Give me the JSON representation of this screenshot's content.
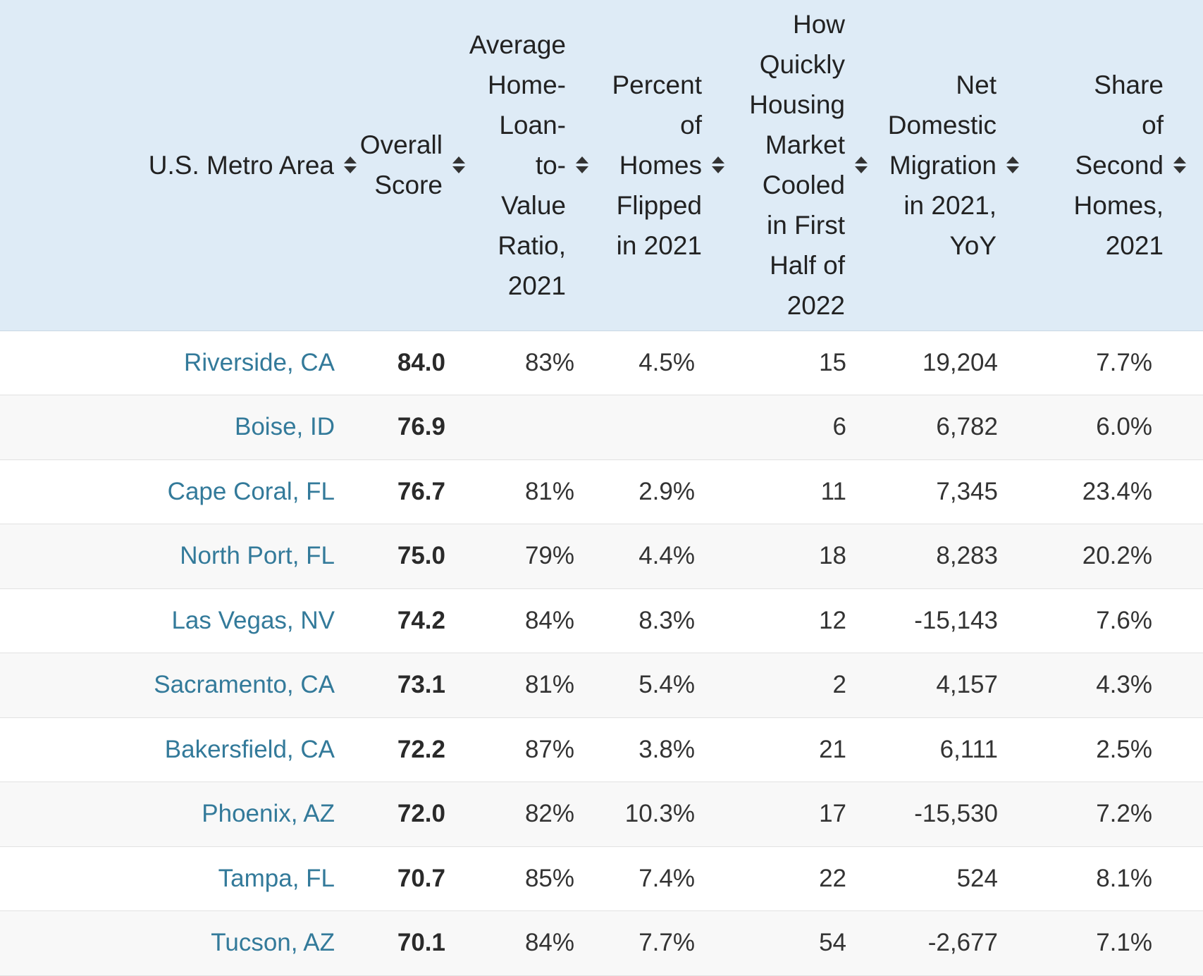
{
  "chart_data": {
    "type": "table",
    "columns": [
      "U.S. Metro Area",
      "Overall Score",
      "Average Home-Loan-to-Value Ratio, 2021",
      "Percent of Homes Flipped in 2021",
      "How Quickly Housing Market Cooled in First Half of 2022",
      "Net Domestic Migration in 2021, YoY",
      "Share of Second Homes, 2021"
    ],
    "header_lines": [
      [
        "U.S. Metro Area"
      ],
      [
        "Overall",
        "Score"
      ],
      [
        "Average",
        "Home-",
        "Loan-",
        "to-",
        "Value",
        "Ratio,",
        "2021"
      ],
      [
        "Percent",
        "of",
        "Homes",
        "Flipped",
        "in 2021"
      ],
      [
        "How",
        "Quickly",
        "Housing",
        "Market",
        "Cooled",
        "in First",
        "Half of",
        "2022"
      ],
      [
        "Net",
        "Domestic",
        "Migration",
        "in 2021,",
        "YoY"
      ],
      [
        "Share",
        "of",
        "Second",
        "Homes,",
        "2021"
      ]
    ],
    "rows": [
      [
        "Riverside, CA",
        "84.0",
        "83%",
        "4.5%",
        "15",
        "19,204",
        "7.7%"
      ],
      [
        "Boise, ID",
        "76.9",
        "",
        "",
        "6",
        "6,782",
        "6.0%"
      ],
      [
        "Cape Coral, FL",
        "76.7",
        "81%",
        "2.9%",
        "11",
        "7,345",
        "23.4%"
      ],
      [
        "North Port, FL",
        "75.0",
        "79%",
        "4.4%",
        "18",
        "8,283",
        "20.2%"
      ],
      [
        "Las Vegas, NV",
        "74.2",
        "84%",
        "8.3%",
        "12",
        "-15,143",
        "7.6%"
      ],
      [
        "Sacramento, CA",
        "73.1",
        "81%",
        "5.4%",
        "2",
        "4,157",
        "4.3%"
      ],
      [
        "Bakersfield, CA",
        "72.2",
        "87%",
        "3.8%",
        "21",
        "6,111",
        "2.5%"
      ],
      [
        "Phoenix, AZ",
        "72.0",
        "82%",
        "10.3%",
        "17",
        "-15,530",
        "7.2%"
      ],
      [
        "Tampa, FL",
        "70.7",
        "85%",
        "7.4%",
        "22",
        "524",
        "8.1%"
      ],
      [
        "Tucson, AZ",
        "70.1",
        "84%",
        "7.7%",
        "54",
        "-2,677",
        "7.1%"
      ]
    ]
  },
  "colors": {
    "header_background": "#deebf6",
    "link_text": "#337a9a",
    "body_text": "#333333",
    "striped_row": "#f8f8f8",
    "row_border": "#e2e2e2"
  },
  "icons": {
    "sort": "sort-up-down-icon"
  }
}
